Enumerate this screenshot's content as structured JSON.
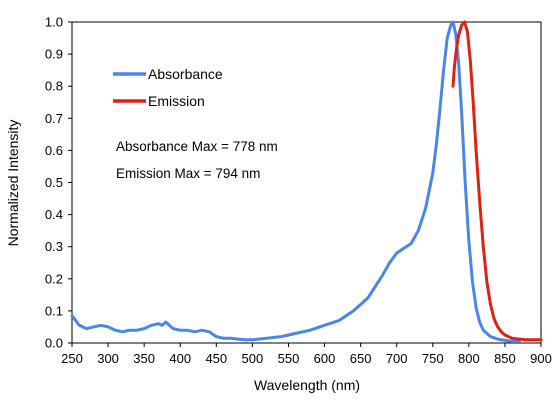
{
  "chart_data": {
    "type": "line",
    "title": "",
    "xlabel": "Wavelength (nm)",
    "ylabel": "Normalized Intensity",
    "xlim": [
      250,
      900
    ],
    "ylim": [
      0,
      1.0
    ],
    "x_ticks": [
      250,
      300,
      350,
      400,
      450,
      500,
      550,
      600,
      650,
      700,
      750,
      800,
      850,
      900
    ],
    "y_ticks": [
      0.0,
      0.1,
      0.2,
      0.3,
      0.4,
      0.5,
      0.6,
      0.7,
      0.8,
      0.9,
      1.0
    ],
    "x_tick_labels": [
      "250",
      "300",
      "350",
      "400",
      "450",
      "500",
      "550",
      "600",
      "650",
      "700",
      "750",
      "800",
      "850",
      "900"
    ],
    "y_tick_labels": [
      "0.0",
      "0.1",
      "0.2",
      "0.3",
      "0.4",
      "0.5",
      "0.6",
      "0.7",
      "0.8",
      "0.9",
      "1.0"
    ],
    "grid": false,
    "legend_position": "upper-left",
    "series": [
      {
        "name": "Absorbance",
        "color": "#4a86e8",
        "x": [
          250,
          255,
          260,
          270,
          280,
          290,
          300,
          310,
          320,
          330,
          340,
          350,
          360,
          370,
          375,
          380,
          385,
          390,
          400,
          410,
          420,
          430,
          440,
          450,
          460,
          470,
          480,
          490,
          500,
          520,
          540,
          560,
          580,
          600,
          620,
          640,
          660,
          680,
          690,
          700,
          710,
          720,
          730,
          740,
          750,
          755,
          760,
          765,
          770,
          775,
          778,
          782,
          786,
          790,
          795,
          800,
          805,
          810,
          815,
          820,
          830,
          840,
          850,
          860,
          870
        ],
        "y": [
          0.085,
          0.07,
          0.055,
          0.045,
          0.05,
          0.055,
          0.05,
          0.04,
          0.035,
          0.04,
          0.04,
          0.045,
          0.055,
          0.06,
          0.055,
          0.065,
          0.055,
          0.045,
          0.04,
          0.04,
          0.035,
          0.04,
          0.035,
          0.02,
          0.015,
          0.015,
          0.012,
          0.01,
          0.01,
          0.015,
          0.02,
          0.03,
          0.04,
          0.055,
          0.07,
          0.1,
          0.14,
          0.21,
          0.25,
          0.28,
          0.295,
          0.31,
          0.35,
          0.42,
          0.53,
          0.62,
          0.73,
          0.85,
          0.95,
          0.99,
          1.0,
          0.96,
          0.87,
          0.72,
          0.5,
          0.32,
          0.19,
          0.11,
          0.065,
          0.04,
          0.02,
          0.012,
          0.008,
          0.005,
          0.005
        ]
      },
      {
        "name": "Emission",
        "color": "#dd2211",
        "x": [
          778,
          780,
          783,
          786,
          790,
          794,
          798,
          802,
          806,
          810,
          815,
          820,
          825,
          830,
          835,
          840,
          845,
          850,
          860,
          870,
          880,
          890,
          900
        ],
        "y": [
          0.8,
          0.86,
          0.92,
          0.96,
          0.99,
          1.0,
          0.97,
          0.88,
          0.75,
          0.6,
          0.44,
          0.3,
          0.19,
          0.12,
          0.075,
          0.05,
          0.035,
          0.025,
          0.015,
          0.012,
          0.01,
          0.01,
          0.01
        ]
      }
    ],
    "annotations": [
      "Absorbance Max = 778 nm",
      "Emission Max = 794 nm"
    ]
  }
}
